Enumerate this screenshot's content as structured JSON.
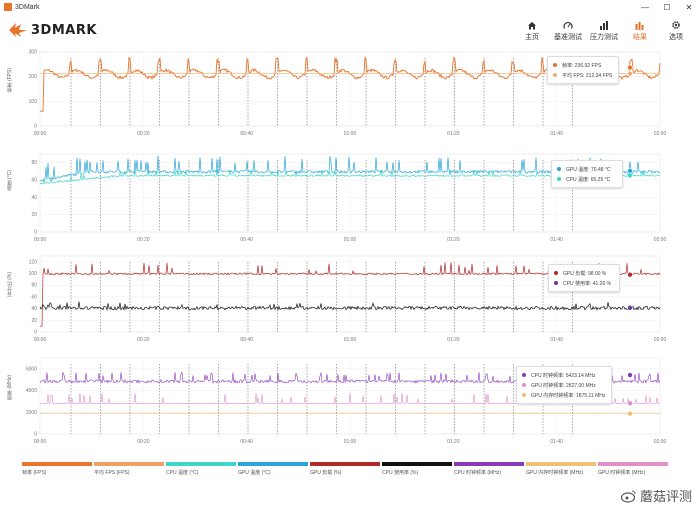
{
  "window": {
    "title": "3DMark",
    "minimize": "—",
    "maximize": "☐",
    "close": "✕"
  },
  "header": {
    "logo_text": "3DMARK",
    "nav": [
      {
        "label": "主页",
        "icon": "home-icon"
      },
      {
        "label": "基准测试",
        "icon": "gauge-icon"
      },
      {
        "label": "压力测试",
        "icon": "bars-icon"
      },
      {
        "label": "结果",
        "icon": "results-icon"
      },
      {
        "label": "选项",
        "icon": "gear-icon"
      }
    ]
  },
  "panels": {
    "fps": {
      "ylabel": "帧率 (FPS)",
      "yticks": [
        "300",
        "200",
        "100",
        "0"
      ]
    },
    "temp": {
      "ylabel": "温度 (°C)",
      "yticks": [
        "80",
        "60",
        "40",
        "20",
        "0"
      ]
    },
    "pct": {
      "ylabel": "百分比 (%)",
      "yticks": [
        "120",
        "100",
        "80",
        "60",
        "40",
        "20",
        "0"
      ]
    },
    "clock": {
      "ylabel": "频率 (MHz)",
      "yticks": [
        "6000",
        "4000",
        "2000",
        "0"
      ]
    }
  },
  "xticks": [
    "00:00",
    "00:20",
    "00:40",
    "01:00",
    "01:20",
    "01:40",
    "02:00"
  ],
  "tooltips": {
    "fps": [
      {
        "label": "帧率: 236.92 FPS",
        "color": "#e8732a"
      },
      {
        "label": "平均 FPS: 212.34 FPS",
        "color": "#f0b070"
      }
    ],
    "temp": [
      {
        "label": "GPU 温度: 70.48 °C",
        "color": "#2aa7d8"
      },
      {
        "label": "CPU 温度: 65.25 °C",
        "color": "#3ed6c8"
      }
    ],
    "pct": [
      {
        "label": "GPU 负载: 98.00 %",
        "color": "#b22a2a"
      },
      {
        "label": "CPU 使用率: 41.26 %",
        "color": "#6a3aa0"
      }
    ],
    "clock": [
      {
        "label": "CPU 时钟频率: 5423.14 MHz",
        "color": "#8a3ab8"
      },
      {
        "label": "GPU 时钟频率: 2827.00 MHz",
        "color": "#e090c8"
      },
      {
        "label": "GPU 内存时钟频率: 1875.11 MHz",
        "color": "#f0c070"
      }
    ]
  },
  "legend": [
    {
      "label": "帧率 (FPS)",
      "color": "#e8732a"
    },
    {
      "label": "平均 FPS (FPS)",
      "color": "#f0a060"
    },
    {
      "label": "CPU 温度 (°C)",
      "color": "#3ed6c8"
    },
    {
      "label": "GPU 温度 (°C)",
      "color": "#2aa7d8"
    },
    {
      "label": "GPU 负载 (%)",
      "color": "#b22a2a"
    },
    {
      "label": "CPU 使用率 (%)",
      "color": "#111111"
    },
    {
      "label": "CPU 时钟频率 (MHz)",
      "color": "#8a3ab8"
    },
    {
      "label": "GPU 内存时钟频率 (MHz)",
      "color": "#f0c070"
    },
    {
      "label": "GPU 时钟频率 (MHz)",
      "color": "#e090c8"
    }
  ],
  "watermark": "蘑菇评测",
  "chart_data": {
    "type": "line",
    "x_range_seconds": [
      0,
      120
    ],
    "series": [
      {
        "name": "帧率",
        "unit": "FPS",
        "typical": 212,
        "current": 236.92
      },
      {
        "name": "平均 FPS",
        "unit": "FPS",
        "typical": 212.34
      },
      {
        "name": "GPU 温度",
        "unit": "°C",
        "typical": 68,
        "current": 70.48
      },
      {
        "name": "CPU 温度",
        "unit": "°C",
        "typical": 64,
        "current": 65.25
      },
      {
        "name": "GPU 负载",
        "unit": "%",
        "typical": 100,
        "current": 98.0
      },
      {
        "name": "CPU 使用率",
        "unit": "%",
        "typical": 40,
        "current": 41.26
      },
      {
        "name": "CPU 时钟频率",
        "unit": "MHz",
        "typical": 4800,
        "current": 5423.14
      },
      {
        "name": "GPU 时钟频率",
        "unit": "MHz",
        "typical": 2800,
        "current": 2827.0
      },
      {
        "name": "GPU 内存时钟频率",
        "unit": "MHz",
        "typical": 1875,
        "current": 1875.11
      }
    ]
  }
}
